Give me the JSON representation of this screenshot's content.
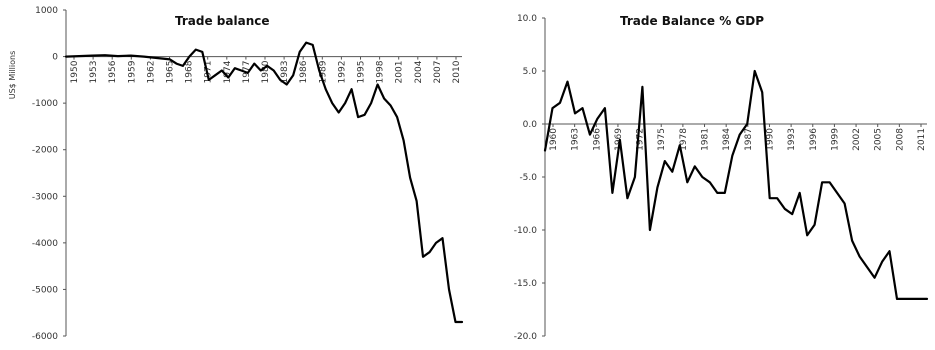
{
  "chart_data": [
    {
      "type": "line",
      "title": "Trade balance",
      "ylabel": "US$ Millions",
      "ylim": [
        -6000,
        1000
      ],
      "yticks": [
        "1000",
        "0",
        "-1000",
        "-2000",
        "-3000",
        "-4000",
        "-5000",
        "-6000"
      ],
      "xlim": [
        1950,
        2011
      ],
      "xtick_labels": [
        "1950",
        "1953",
        "1956",
        "1959",
        "1962",
        "1965",
        "1968",
        "1971",
        "1974",
        "1977",
        "1980",
        "1983",
        "1986",
        "1989",
        "1992",
        "1995",
        "1998",
        "2001",
        "2004",
        "2007",
        "2010"
      ],
      "series": [
        {
          "x": [
            1950,
            1952,
            1954,
            1956,
            1958,
            1960,
            1962,
            1964,
            1966,
            1967,
            1968,
            1969,
            1970,
            1971,
            1972,
            1973,
            1974,
            1975,
            1976,
            1977,
            1978,
            1979,
            1980,
            1981,
            1982,
            1983,
            1984,
            1985,
            1986,
            1987,
            1988,
            1989,
            1990,
            1991,
            1992,
            1993,
            1994,
            1995,
            1996,
            1997,
            1998,
            1999,
            2000,
            2001,
            2002,
            2003,
            2004,
            2005,
            2006,
            2007,
            2008,
            2009,
            2010,
            2011
          ],
          "values": [
            0,
            10,
            20,
            30,
            10,
            20,
            0,
            -30,
            -60,
            -150,
            -200,
            0,
            150,
            100,
            -500,
            -400,
            -300,
            -450,
            -250,
            -300,
            -350,
            -150,
            -300,
            -200,
            -300,
            -500,
            -600,
            -400,
            100,
            300,
            250,
            -300,
            -700,
            -1000,
            -1200,
            -1000,
            -700,
            -1300,
            -1250,
            -1000,
            -600,
            -900,
            -1050,
            -1300,
            -1800,
            -2600,
            -3100,
            -4300,
            -4200,
            -4000,
            -3900,
            -5000,
            -5700,
            -5700
          ]
        }
      ],
      "grid": false,
      "legend": "none"
    },
    {
      "type": "line",
      "title": "Trade Balance % GDP",
      "ylim": [
        -20,
        10
      ],
      "yticks": [
        "10.0",
        "5.0",
        "0.0",
        "-5.0",
        "-10.0",
        "-15.0",
        "-20.0"
      ],
      "xlim": [
        1960,
        2011
      ],
      "xtick_labels": [
        "1960",
        "1963",
        "1966",
        "1969",
        "1972",
        "1975",
        "1978",
        "1981",
        "1984",
        "1987",
        "1990",
        "1993",
        "1996",
        "1999",
        "2002",
        "2005",
        "2008",
        "2011"
      ],
      "series": [
        {
          "x": [
            1960,
            1961,
            1962,
            1963,
            1964,
            1965,
            1966,
            1967,
            1968,
            1969,
            1970,
            1971,
            1972,
            1973,
            1974,
            1975,
            1976,
            1977,
            1978,
            1979,
            1980,
            1981,
            1982,
            1983,
            1984,
            1985,
            1986,
            1987,
            1988,
            1989,
            1990,
            1991,
            1992,
            1993,
            1994,
            1995,
            1996,
            1997,
            1998,
            1999,
            2000,
            2001,
            2002,
            2003,
            2004,
            2005,
            2006,
            2007,
            2008,
            2009,
            2010,
            2011
          ],
          "values": [
            -2.5,
            1.5,
            2.0,
            4.0,
            1.0,
            1.5,
            -1.0,
            0.5,
            1.5,
            -6.5,
            -1.5,
            -7.0,
            -5.0,
            3.5,
            -10.0,
            -6.0,
            -3.5,
            -4.5,
            -2.0,
            -5.5,
            -4.0,
            -5.0,
            -5.5,
            -6.5,
            -6.5,
            -3.0,
            -1.0,
            0.0,
            5.0,
            3.0,
            -7.0,
            -7.0,
            -8.0,
            -8.5,
            -6.5,
            -10.5,
            -9.5,
            -5.5,
            -5.5,
            -6.5,
            -7.5,
            -11.0,
            -12.5,
            -13.5,
            -14.5,
            -13.0,
            -12.0,
            -16.5,
            -16.5,
            -16.5,
            -16.5,
            -16.5
          ]
        }
      ],
      "grid": false,
      "legend": "none"
    }
  ]
}
